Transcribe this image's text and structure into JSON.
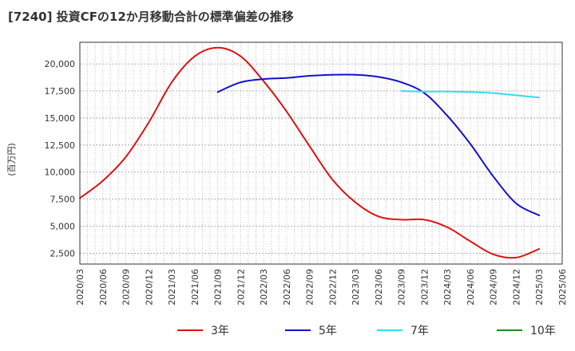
{
  "chart_data": {
    "type": "line",
    "title": "[7240]  投資CFの12か月移動合計の標準偏差の推移",
    "ylabel": "(百万円)",
    "xlabel": "",
    "ylim": [
      1500,
      22000
    ],
    "yticks": [
      2500,
      5000,
      7500,
      10000,
      12500,
      15000,
      17500,
      20000
    ],
    "ytick_labels": [
      "2,500",
      "5,000",
      "7,500",
      "10,000",
      "12,500",
      "15,000",
      "17,500",
      "20,000"
    ],
    "x_start": "2020-03",
    "x_end": "2025-06",
    "xticks": [
      "2020/03",
      "2020/06",
      "2020/09",
      "2020/12",
      "2021/03",
      "2021/06",
      "2021/09",
      "2021/12",
      "2022/03",
      "2022/06",
      "2022/09",
      "2022/12",
      "2023/03",
      "2023/06",
      "2023/09",
      "2023/12",
      "2024/03",
      "2024/06",
      "2024/09",
      "2024/12",
      "2025/03",
      "2025/06"
    ],
    "grid": true,
    "legend_position": "bottom",
    "series": [
      {
        "name": "3年",
        "color": "#dd1111",
        "points": [
          [
            "2020-03",
            7600
          ],
          [
            "2020-06",
            9200
          ],
          [
            "2020-09",
            11400
          ],
          [
            "2020-12",
            14600
          ],
          [
            "2021-03",
            18300
          ],
          [
            "2021-06",
            20700
          ],
          [
            "2021-09",
            21500
          ],
          [
            "2021-12",
            20700
          ],
          [
            "2022-03",
            18400
          ],
          [
            "2022-06",
            15600
          ],
          [
            "2022-09",
            12400
          ],
          [
            "2022-12",
            9300
          ],
          [
            "2023-03",
            7200
          ],
          [
            "2023-06",
            5900
          ],
          [
            "2023-09",
            5600
          ],
          [
            "2023-12",
            5600
          ],
          [
            "2024-03",
            4900
          ],
          [
            "2024-06",
            3600
          ],
          [
            "2024-09",
            2400
          ],
          [
            "2024-12",
            2100
          ],
          [
            "2025-03",
            2900
          ]
        ]
      },
      {
        "name": "5年",
        "color": "#1111cc",
        "points": [
          [
            "2021-09",
            17400
          ],
          [
            "2021-12",
            18300
          ],
          [
            "2022-03",
            18600
          ],
          [
            "2022-06",
            18700
          ],
          [
            "2022-09",
            18900
          ],
          [
            "2022-12",
            19000
          ],
          [
            "2023-03",
            19000
          ],
          [
            "2023-06",
            18800
          ],
          [
            "2023-09",
            18300
          ],
          [
            "2023-12",
            17300
          ],
          [
            "2024-03",
            15200
          ],
          [
            "2024-06",
            12600
          ],
          [
            "2024-09",
            9600
          ],
          [
            "2024-12",
            7100
          ],
          [
            "2025-03",
            6000
          ]
        ]
      },
      {
        "name": "7年",
        "color": "#33ddee",
        "points": [
          [
            "2023-09",
            17500
          ],
          [
            "2023-12",
            17450
          ],
          [
            "2024-03",
            17450
          ],
          [
            "2024-06",
            17400
          ],
          [
            "2024-09",
            17300
          ],
          [
            "2024-12",
            17100
          ],
          [
            "2025-03",
            16900
          ]
        ]
      },
      {
        "name": "10年",
        "color": "#228822",
        "points": []
      }
    ]
  }
}
